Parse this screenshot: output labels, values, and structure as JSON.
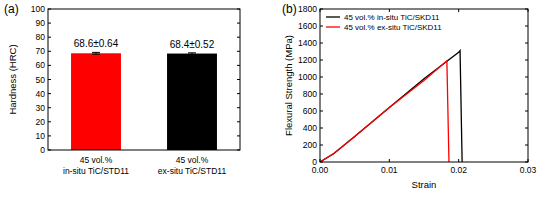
{
  "chart_data": [
    {
      "type": "bar",
      "title": "(a)",
      "categories": [
        "45 vol.%\nin-situ TiC/STD11",
        "45 vol.%\nex-situ TiC/STD11"
      ],
      "values": [
        68.6,
        68.4
      ],
      "errors": [
        0.64,
        0.52
      ],
      "value_labels": [
        "68.6±0.64",
        "68.4±0.52"
      ],
      "data_labels": true,
      "colors": [
        "#ff0000",
        "#000000"
      ],
      "y_label": "Hardness (HRC)",
      "ylim": [
        0,
        100
      ],
      "yticks": [
        0,
        10,
        20,
        30,
        40,
        50,
        60,
        70,
        80,
        90,
        100
      ]
    },
    {
      "type": "line",
      "title": "(b)",
      "x_label": "Strain",
      "y_label": "Flexural Strength (MPa)",
      "xlim": [
        0,
        0.03
      ],
      "xticks": [
        {
          "value": 0,
          "label": "0.00"
        },
        0.01,
        0.02,
        0.03
      ],
      "ylim": [
        0,
        1800
      ],
      "yticks": [
        0,
        200,
        400,
        600,
        800,
        1000,
        1200,
        1400,
        1600,
        1800
      ],
      "legend": "upper left",
      "series": [
        {
          "name": "45 vol.% in-situ TiC/SKD11",
          "color": "#000000",
          "x": [
            0,
            0.002,
            0.005,
            0.01,
            0.015,
            0.02,
            0.0202,
            0.0205
          ],
          "values": [
            0,
            100,
            300,
            640,
            980,
            1290,
            1310,
            0
          ]
        },
        {
          "name": "45 vol.% ex-situ TiC/SKD11",
          "color": "#ff0000",
          "x": [
            0,
            0.002,
            0.005,
            0.01,
            0.015,
            0.0183,
            0.0186
          ],
          "values": [
            0,
            100,
            300,
            640,
            960,
            1190,
            0
          ]
        }
      ]
    }
  ]
}
